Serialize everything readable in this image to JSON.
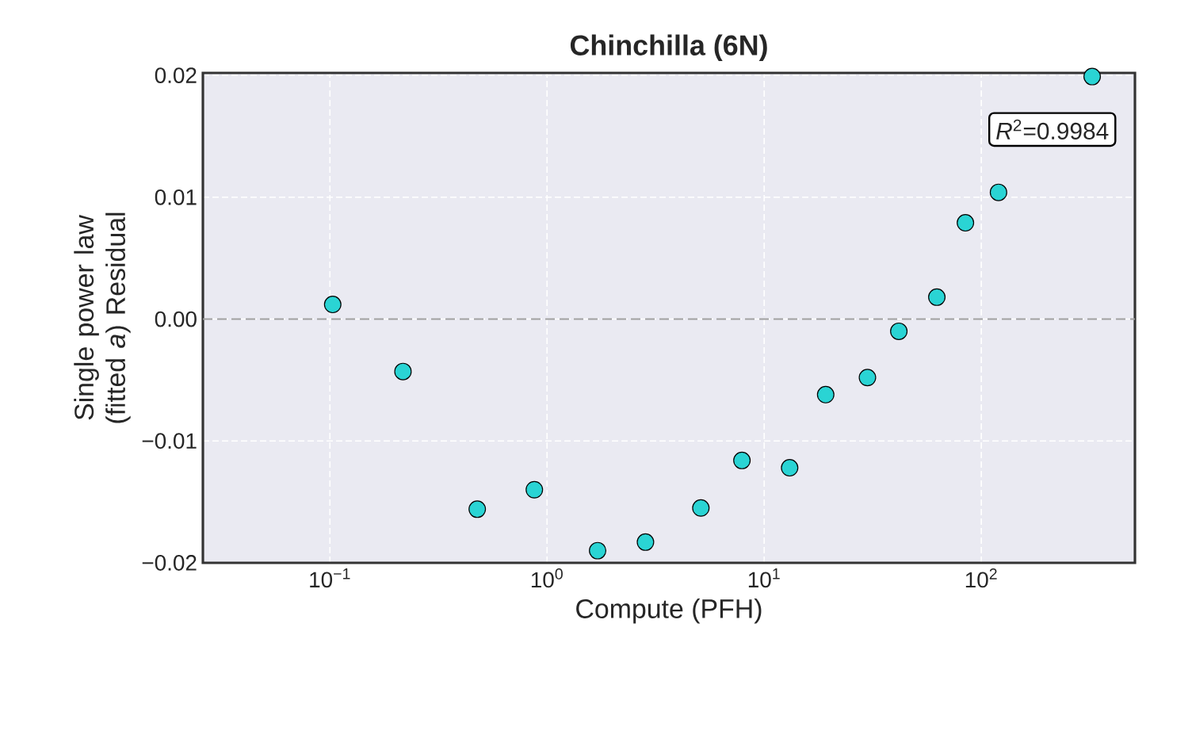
{
  "chart_data": {
    "type": "scatter",
    "title": "Chinchilla (6N)",
    "xlabel": "Compute (PFH)",
    "ylabel": "Single power law (fitted *a*) Residual",
    "x": [
      0.103,
      0.217,
      0.477,
      0.874,
      1.71,
      2.84,
      5.11,
      7.9,
      13.1,
      19.2,
      29.9,
      41.7,
      62.4,
      84.5,
      120,
      324
    ],
    "values": [
      0.0012,
      -0.0043,
      -0.0156,
      -0.014,
      -0.019,
      -0.0183,
      -0.0155,
      -0.0116,
      -0.0122,
      -0.0062,
      -0.0048,
      -0.001,
      0.0018,
      0.0079,
      0.0104,
      0.0199
    ],
    "color": "#2ad4d4",
    "log": "x",
    "grid": true,
    "xlim": [
      0.026,
      510
    ],
    "ylim": [
      -0.02,
      0.0202
    ],
    "xticks": [
      {
        "value": 0.1,
        "label": "10$^{−1}$"
      },
      {
        "value": 1,
        "label": "10$^{0}$"
      },
      {
        "value": 10,
        "label": "10$^{1}$"
      },
      {
        "value": 100,
        "label": "10$^{2}$"
      }
    ],
    "yticks": [
      {
        "value": -0.02,
        "label": "−0.02"
      },
      {
        "value": -0.01,
        "label": "−0.01"
      },
      {
        "value": 0,
        "label": "0.00"
      },
      0.01,
      0.02
    ],
    "ref_lines": [
      {
        "axis": "y",
        "value": 0,
        "color": "#a0a0a0",
        "line_style": "dashed"
      }
    ],
    "annotations": [
      "*R*$^{2}$=0.9984"
    ]
  }
}
